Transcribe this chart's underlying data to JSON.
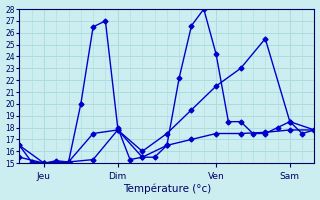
{
  "xlabel": "Température (°c)",
  "bg_color": "#cceef0",
  "line_color": "#0000cc",
  "grid_color": "#aadddd",
  "ylim": [
    15,
    28
  ],
  "yticks": [
    15,
    16,
    17,
    18,
    19,
    20,
    21,
    22,
    23,
    24,
    25,
    26,
    27,
    28
  ],
  "xlim": [
    0,
    24
  ],
  "x_tick_positions": [
    2,
    8,
    16,
    22
  ],
  "x_tick_labels": [
    "Jeu",
    "Dim",
    "Ven",
    "Sam"
  ],
  "line1_x": [
    0,
    1,
    2,
    3,
    4,
    5,
    6,
    7,
    8,
    9,
    10,
    11,
    12,
    13,
    14,
    15,
    16,
    17,
    18,
    19,
    20,
    21,
    22,
    23,
    24
  ],
  "line1_y": [
    16.5,
    15.1,
    15.0,
    15.2,
    15.1,
    20.0,
    26.5,
    27.0,
    18.0,
    15.3,
    15.5,
    15.5,
    16.5,
    22.2,
    26.6,
    28.0,
    24.2,
    18.5,
    18.5,
    17.5,
    17.5,
    18.0,
    18.5,
    17.5,
    17.8
  ],
  "line2_x": [
    0,
    2,
    4,
    6,
    8,
    10,
    12,
    14,
    16,
    18,
    20,
    22,
    24
  ],
  "line2_y": [
    16.5,
    15.0,
    15.1,
    17.5,
    17.8,
    15.5,
    16.5,
    17.0,
    17.5,
    17.5,
    17.6,
    17.8,
    17.8
  ],
  "line3_x": [
    0,
    2,
    4,
    6,
    8,
    10,
    12,
    14,
    16,
    18,
    20,
    22,
    24
  ],
  "line3_y": [
    15.5,
    15.0,
    15.1,
    15.3,
    17.8,
    16.0,
    17.5,
    19.5,
    21.5,
    23.0,
    25.5,
    18.5,
    17.8
  ],
  "figsize": [
    3.2,
    2.0
  ],
  "dpi": 100
}
